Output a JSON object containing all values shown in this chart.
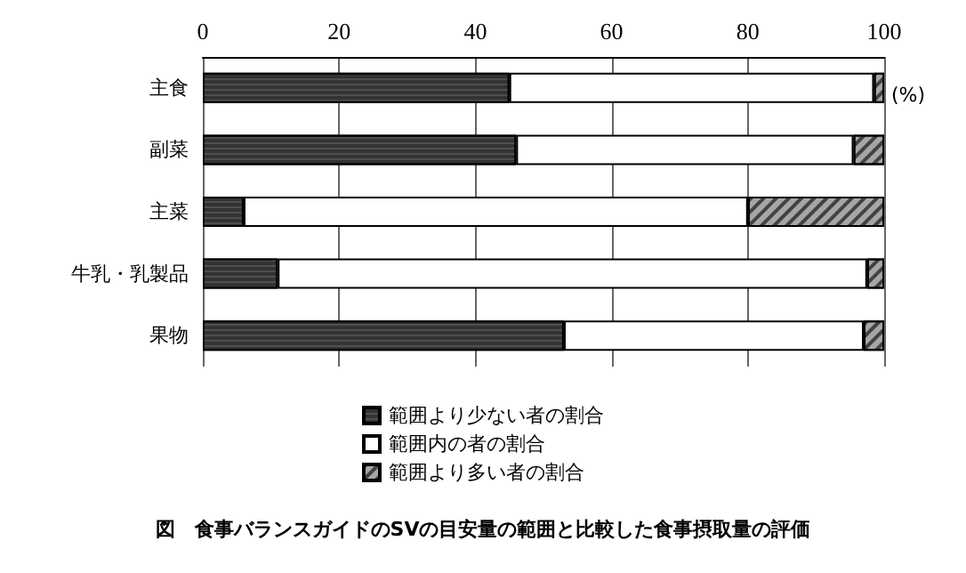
{
  "chart_data": {
    "type": "bar",
    "orientation": "horizontal",
    "stacked": true,
    "title": "図　食事バランスガイドのSVの目安量の範囲と比較した食事摂取量の評価",
    "xlabel": "(%)",
    "categories": [
      "主食",
      "副菜",
      "主菜",
      "牛乳・乳製品",
      "果物"
    ],
    "series": [
      {
        "name": "範囲より少ない者の割合",
        "color": "#333333",
        "values": [
          45,
          46,
          6,
          11,
          53
        ]
      },
      {
        "name": "範囲内の者の割合",
        "color": "#ffffff",
        "values": [
          53.5,
          49.5,
          74,
          86.5,
          44
        ]
      },
      {
        "name": "範囲より多い者の割合",
        "color": "#a6a6a6",
        "values": [
          1.5,
          4.5,
          20,
          2.5,
          3
        ]
      }
    ],
    "xlim": [
      0,
      100
    ],
    "xticks": [
      0,
      20,
      40,
      60,
      80,
      100
    ],
    "grid": "x",
    "legend": "bottom"
  }
}
